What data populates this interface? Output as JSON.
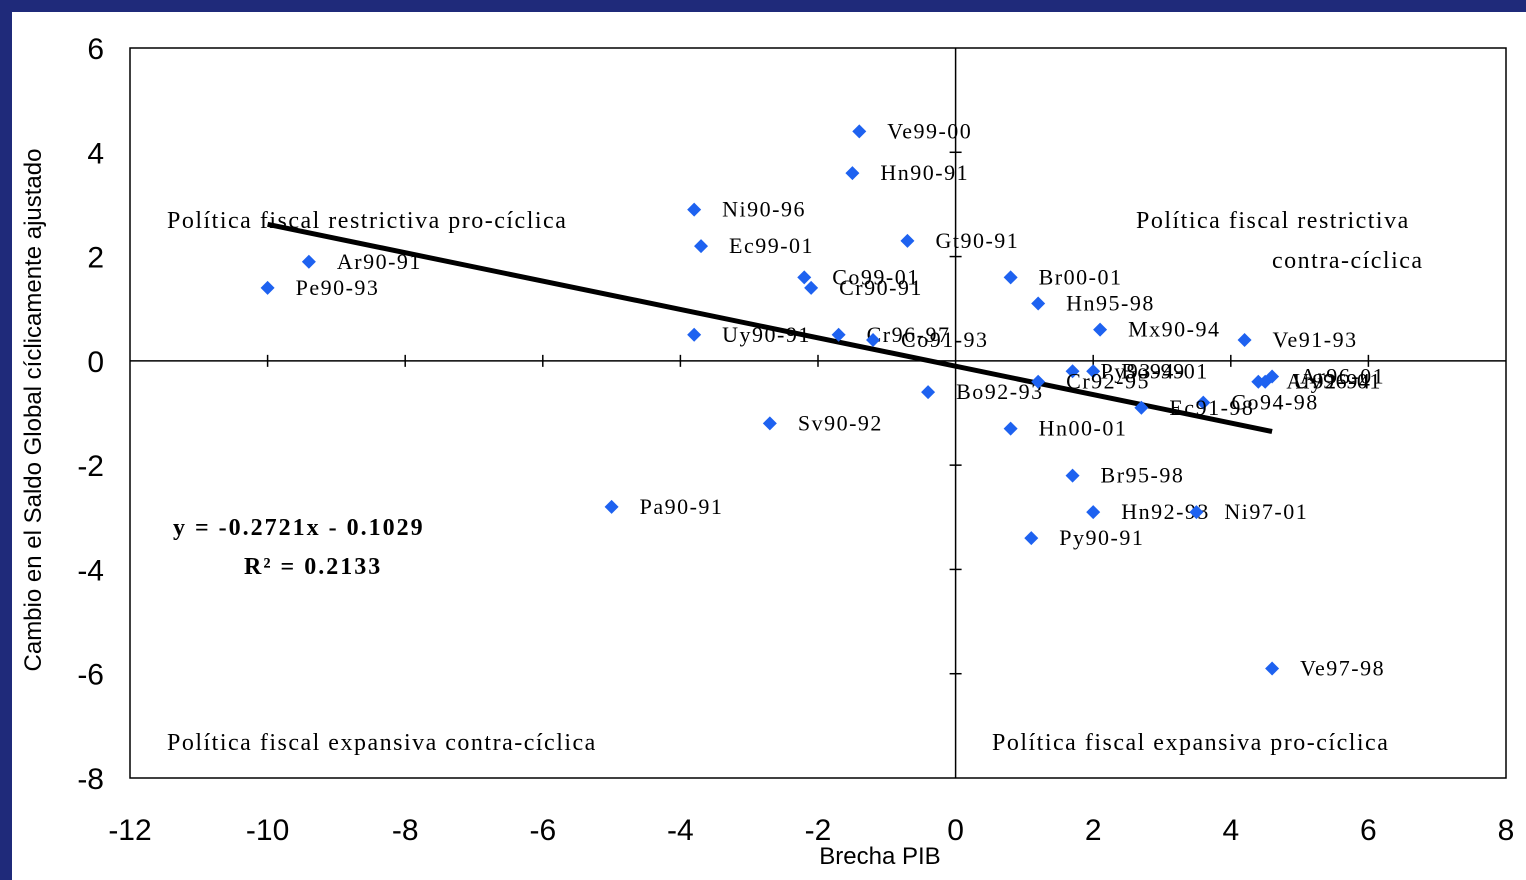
{
  "chart_data": {
    "type": "scatter",
    "xlabel": "Brecha PIB",
    "ylabel": "Cambio en el Saldo Global cíclicamente ajustado",
    "xlim": [
      -12,
      8
    ],
    "ylim": [
      -8,
      6
    ],
    "x_ticks": [
      "-12",
      "-10",
      "-8",
      "-6",
      "-4",
      "-2",
      "0",
      "2",
      "4",
      "6",
      "8"
    ],
    "y_ticks": [
      "6",
      "4",
      "2",
      "0",
      "-2",
      "-4",
      "-6",
      "-8"
    ],
    "marker_color": "#1e62f0",
    "points": [
      {
        "label": "Ve99-00",
        "x": -1.4,
        "y": 4.4
      },
      {
        "label": "Hn90-91",
        "x": -1.5,
        "y": 3.6
      },
      {
        "label": "Ni90-96",
        "x": -3.8,
        "y": 2.9
      },
      {
        "label": "Ec99-01",
        "x": -3.7,
        "y": 2.2
      },
      {
        "label": "Gt90-91",
        "x": -0.7,
        "y": 2.3
      },
      {
        "label": "Ar90-91",
        "x": -9.4,
        "y": 1.9
      },
      {
        "label": "Pe90-93",
        "x": -10.0,
        "y": 1.4
      },
      {
        "label": "Co99-01",
        "x": -2.2,
        "y": 1.6
      },
      {
        "label": "Cr90-91",
        "x": -2.1,
        "y": 1.4
      },
      {
        "label": "Cr96-97",
        "x": -1.7,
        "y": 0.5
      },
      {
        "label": "Co91-93",
        "x": -1.2,
        "y": 0.4
      },
      {
        "label": "Uy90-91",
        "x": -3.8,
        "y": 0.5
      },
      {
        "label": "Br00-01",
        "x": 0.8,
        "y": 1.6
      },
      {
        "label": "Hn95-98",
        "x": 1.2,
        "y": 1.1
      },
      {
        "label": "Mx90-94",
        "x": 2.1,
        "y": 0.6
      },
      {
        "label": "Ve91-93",
        "x": 4.2,
        "y": 0.4
      },
      {
        "label": "Bo94-01",
        "x": 2.0,
        "y": -0.2
      },
      {
        "label": "Py93-99",
        "x": 1.7,
        "y": -0.2
      },
      {
        "label": "Bo92-93",
        "x": -0.4,
        "y": -0.6
      },
      {
        "label": "Ar96-01",
        "x": 4.6,
        "y": -0.3
      },
      {
        "label": "Ar92-94",
        "x": 4.4,
        "y": -0.4
      },
      {
        "label": "Uy96-01",
        "x": 4.5,
        "y": -0.4
      },
      {
        "label": "Cr92-95",
        "x": 1.2,
        "y": -0.4
      },
      {
        "label": "Co94-98",
        "x": 3.6,
        "y": -0.8
      },
      {
        "label": "Ec91-98",
        "x": 2.7,
        "y": -0.9
      },
      {
        "label": "Hn00-01",
        "x": 0.8,
        "y": -1.3
      },
      {
        "label": "Sv90-92",
        "x": -2.7,
        "y": -1.2
      },
      {
        "label": "Br95-98",
        "x": 1.7,
        "y": -2.2
      },
      {
        "label": "Pa90-91",
        "x": -5.0,
        "y": -2.8
      },
      {
        "label": "Hn92-93",
        "x": 2.0,
        "y": -2.9
      },
      {
        "label": "Ni97-01",
        "x": 3.5,
        "y": -2.9
      },
      {
        "label": "Py90-91",
        "x": 1.1,
        "y": -3.4
      },
      {
        "label": "Ve97-98",
        "x": 4.6,
        "y": -5.9
      }
    ],
    "trendline": {
      "slope": -0.2721,
      "intercept": -0.1029,
      "x_range": [
        -10.0,
        4.6
      ],
      "color": "#000000"
    },
    "equation": "y = -0.2721x - 0.1029",
    "r_squared": "R² = 0.2133",
    "quadrants": {
      "top_left": "Política fiscal restrictiva pro-cíclica",
      "top_right_line1": "Política fiscal restrictiva",
      "top_right_line2": "contra-cíclica",
      "bottom_left": "Política fiscal expansiva contra-cíclica",
      "bottom_right": "Política fiscal expansiva pro-cíclica"
    }
  }
}
